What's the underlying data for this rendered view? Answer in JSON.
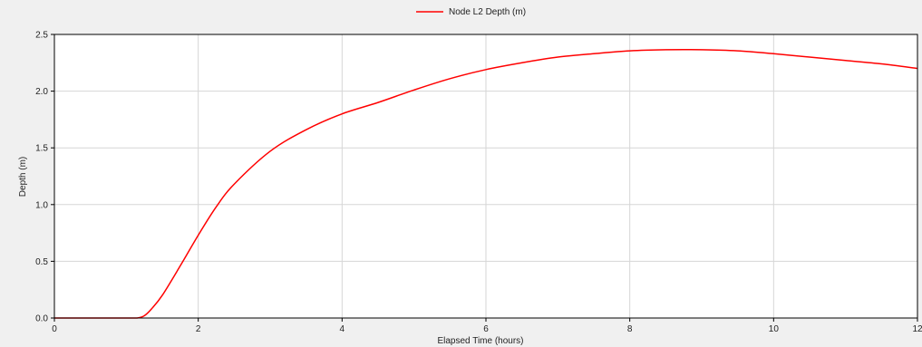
{
  "chart_data": {
    "type": "line",
    "xlabel": "Elapsed Time (hours)",
    "ylabel": "Depth (m)",
    "xlim": [
      0,
      12
    ],
    "ylim": [
      0,
      2.5
    ],
    "x_ticks": [
      {
        "value": 0,
        "label": "0"
      },
      {
        "value": 2,
        "label": "2"
      },
      {
        "value": 4,
        "label": "4"
      },
      {
        "value": 6,
        "label": "6"
      },
      {
        "value": 8,
        "label": "8"
      },
      {
        "value": 10,
        "label": "10"
      },
      {
        "value": 12,
        "label": "12"
      }
    ],
    "y_ticks": [
      {
        "value": 0,
        "label": "0.0"
      },
      {
        "value": 0.5,
        "label": "0.5"
      },
      {
        "value": 1.0,
        "label": "1.0"
      },
      {
        "value": 1.5,
        "label": "1.5"
      },
      {
        "value": 2.0,
        "label": "2.0"
      },
      {
        "value": 2.5,
        "label": "2.5"
      }
    ],
    "grid": true,
    "legend_position": "top-center",
    "series": [
      {
        "name": "Node L2 Depth (m)",
        "color": "#ff0000",
        "x": [
          0,
          1.0,
          1.15,
          1.25,
          1.35,
          1.5,
          1.75,
          2.0,
          2.25,
          2.5,
          3.0,
          3.5,
          4.0,
          4.5,
          5.0,
          5.5,
          6.0,
          6.5,
          7.0,
          7.5,
          8.0,
          8.5,
          9.0,
          9.5,
          10.0,
          10.5,
          11.0,
          11.5,
          12.0
        ],
        "y": [
          0,
          0,
          0.0,
          0.02,
          0.08,
          0.2,
          0.46,
          0.73,
          0.98,
          1.18,
          1.47,
          1.66,
          1.8,
          1.9,
          2.01,
          2.11,
          2.19,
          2.25,
          2.3,
          2.33,
          2.355,
          2.365,
          2.365,
          2.355,
          2.33,
          2.3,
          2.27,
          2.24,
          2.2
        ]
      }
    ]
  }
}
